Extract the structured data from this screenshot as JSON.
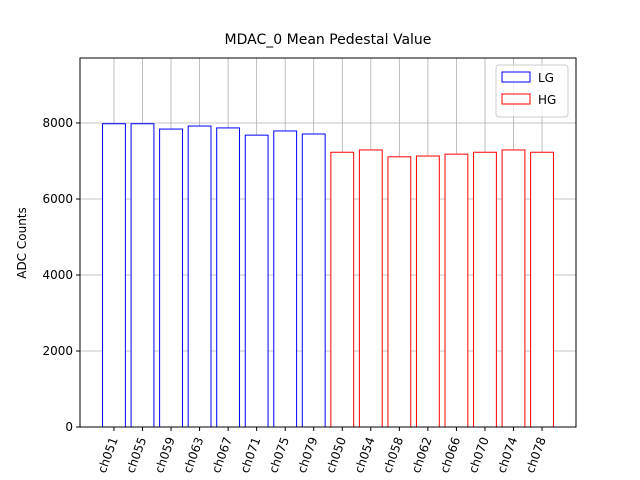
{
  "chart_data": {
    "type": "bar",
    "title": "MDAC_0 Mean Pedestal Value",
    "y_label": "ADC Counts",
    "categories": [
      "ch051",
      "ch055",
      "ch059",
      "ch063",
      "ch067",
      "ch071",
      "ch075",
      "ch079",
      "ch050",
      "ch054",
      "ch058",
      "ch062",
      "ch066",
      "ch070",
      "ch074",
      "ch078"
    ],
    "series": [
      {
        "name": "LG",
        "color": "#0000ff",
        "values": [
          7980,
          7980,
          7840,
          7920,
          7870,
          7680,
          7790,
          7710,
          null,
          null,
          null,
          null,
          null,
          null,
          null,
          null
        ]
      },
      {
        "name": "HG",
        "color": "#ff0000",
        "values": [
          null,
          null,
          null,
          null,
          null,
          null,
          null,
          null,
          7230,
          7290,
          7110,
          7130,
          7180,
          7230,
          7290,
          7230
        ]
      }
    ],
    "ylim": [
      0,
      9710
    ],
    "yticks": [
      0,
      2000,
      4000,
      6000,
      8000
    ],
    "grid": true,
    "legend": "upper right"
  }
}
